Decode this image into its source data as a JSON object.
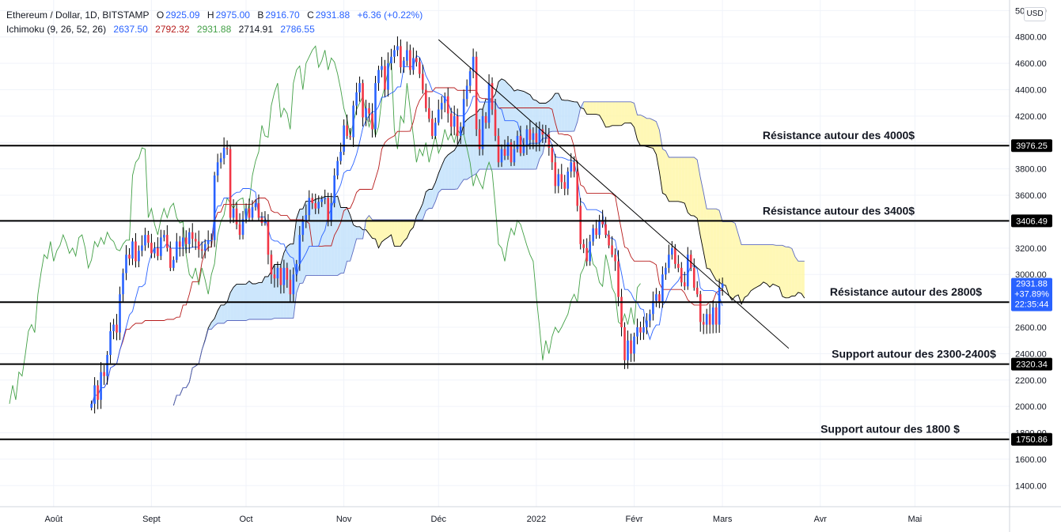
{
  "legend": {
    "symbol": "Ethereum / Dollar, 1D, BITSTAMP",
    "o_label": "O",
    "o_value": "2925.09",
    "h_label": "H",
    "h_value": "2975.00",
    "l_label": "B",
    "l_value": "2916.70",
    "c_label": "C",
    "c_value": "2931.88",
    "change": "+6.36 (+0.22%)",
    "ichimoku_label": "Ichimoku (9, 26, 52, 26)",
    "ichimoku_values": [
      "2637.50",
      "2792.32",
      "2931.88",
      "2714.91",
      "2786.55"
    ]
  },
  "currency_button": "USD",
  "colors": {
    "up": "#2962ff",
    "down": "#f23645",
    "tenkan": "#2962ff",
    "kijun": "#b71c1c",
    "chikou": "#43a047",
    "span_a": "#000000",
    "span_b": "#5c6bc0",
    "cloud_bull": "#bbdefb",
    "cloud_bear": "#fff59d",
    "price_badge": "#2962ff",
    "ichimoku_values": [
      "#2962ff",
      "#b71c1c",
      "#43a047",
      "#131722",
      "#2962ff"
    ]
  },
  "chart_data": {
    "type": "candlestick",
    "x_start": "2021-07-15",
    "x_end": "2022-05-31",
    "x_ticks": [
      {
        "date": "2021-08-01",
        "label": "Août"
      },
      {
        "date": "2021-09-01",
        "label": "Sept"
      },
      {
        "date": "2021-10-01",
        "label": "Oct"
      },
      {
        "date": "2021-11-01",
        "label": "Nov"
      },
      {
        "date": "2021-12-01",
        "label": "Déc"
      },
      {
        "date": "2022-01-01",
        "label": "2022"
      },
      {
        "date": "2022-02-01",
        "label": "Févr"
      },
      {
        "date": "2022-03-01",
        "label": "Mars"
      },
      {
        "date": "2022-04-01",
        "label": "Avr"
      },
      {
        "date": "2022-05-01",
        "label": "Mai"
      }
    ],
    "ylim": [
      1240,
      5080
    ],
    "y_ticks": [
      1400,
      1600,
      1800,
      2000,
      2200,
      2400,
      2600,
      2800,
      3000,
      3200,
      3400,
      3600,
      3800,
      4000,
      4200,
      4400,
      4600,
      4800,
      5000
    ],
    "y_tick_labels": [
      "1400.00",
      "1600.00",
      "1800.00",
      "2000.00",
      "2200.00",
      "2400.00",
      "2600.00",
      "2800.00",
      "3000.00",
      "3200.00",
      "3400.00",
      "3600.00",
      "3800.00",
      "4000.00",
      "4200.00",
      "4400.00",
      "4600.00",
      "4800.00",
      "5000.00"
    ],
    "horizontal_levels": [
      {
        "value": 3976.25,
        "label": "3976.25",
        "annotation": "Résistance autour des 4000$"
      },
      {
        "value": 3406.49,
        "label": "3406.49",
        "annotation": "Résistance autour des 3400$"
      },
      {
        "value": 2790.23,
        "label": "2790.23",
        "annotation": "Résistance autour des 2800$"
      },
      {
        "value": 2320.34,
        "label": "2320.34",
        "annotation": "Support autour des 2300-2400$"
      },
      {
        "value": 1750.86,
        "label": "1750.86",
        "annotation": "Support autour des 1800 $"
      }
    ],
    "trendline": {
      "start": {
        "date": "2021-12-01",
        "value": 4780
      },
      "end": {
        "date": "2022-03-22",
        "value": 2440
      }
    },
    "current_price": {
      "value": 2931.88,
      "label": "2931.88",
      "change": "+37.89%",
      "countdown": "22:35:44"
    },
    "candles_close": [
      2020,
      2160,
      2050,
      2260,
      2230,
      2390,
      2570,
      2620,
      2560,
      2850,
      3010,
      3150,
      3120,
      3250,
      3100,
      3180,
      3220,
      3300,
      3240,
      3160,
      3200,
      3140,
      3280,
      3300,
      3200,
      3050,
      3110,
      3250,
      3210,
      3280,
      3230,
      3320,
      3270,
      3250,
      3190,
      3180,
      3230,
      3260,
      3260,
      3750,
      3850,
      3880,
      3960,
      3950,
      3430,
      3500,
      3380,
      3300,
      3420,
      3500,
      3430,
      3510,
      3540,
      3430,
      3390,
      3400,
      3150,
      3000,
      2970,
      3050,
      2920,
      3050,
      2960,
      2850,
      3000,
      3080,
      3300,
      3400,
      3450,
      3580,
      3540,
      3500,
      3550,
      3570,
      3580,
      3400,
      3540,
      3750,
      3860,
      3930,
      4130,
      4050,
      4040,
      4280,
      4380,
      4450,
      4190,
      4260,
      4220,
      4100,
      4450,
      4550,
      4580,
      4400,
      4600,
      4650,
      4700,
      4730,
      4570,
      4620,
      4700,
      4550,
      4640,
      4610,
      4520,
      4400,
      4260,
      4180,
      4050,
      4150,
      4250,
      4300,
      4350,
      4220,
      4120,
      4200,
      4050,
      4120,
      4330,
      4430,
      4540,
      4650,
      4100,
      3950,
      4200,
      4150,
      4450,
      4250,
      4050,
      3850,
      3950,
      3900,
      4000,
      3850,
      3950,
      4050,
      3920,
      3980,
      4100,
      4020,
      4070,
      4000,
      4100,
      4060,
      4060,
      3960,
      3850,
      3670,
      3760,
      3700,
      3650,
      3780,
      3850,
      3780,
      3520,
      3230,
      3200,
      3100,
      3250,
      3350,
      3300,
      3410,
      3380,
      3300,
      3220,
      3150,
      3100,
      2830,
      2600,
      2350,
      2500,
      2400,
      2530,
      2600,
      2560,
      2600,
      2650,
      2700,
      2800,
      2850,
      2790,
      3000,
      3050,
      3150,
      3200,
      3080,
      3050,
      2940,
      2910,
      3150,
      3050,
      2900,
      2850,
      2640,
      2620,
      2700,
      2620,
      2750,
      2620,
      2900,
      2932
    ]
  }
}
